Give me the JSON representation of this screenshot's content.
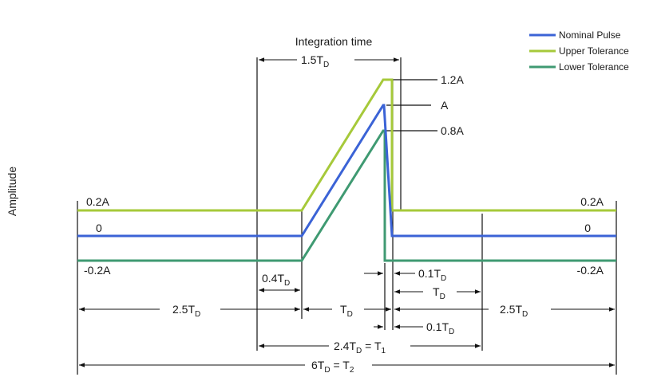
{
  "y_axis_label": "Amplitude",
  "integration_time_label": "Integration time",
  "legend": [
    {
      "label": "Nominal Pulse",
      "color": "#3b63d6"
    },
    {
      "label": "Upper Tolerance",
      "color": "#a6c93a"
    },
    {
      "label": "Lower Tolerance",
      "color": "#3f9a72"
    }
  ],
  "levels": {
    "upper_left": "0.2A",
    "zero_left": "0",
    "lower_left": "-0.2A",
    "upper_right": "0.2A",
    "zero_right": "0",
    "lower_right": "-0.2A",
    "peak_upper": "1.2A",
    "peak_nominal": "A",
    "peak_lower": "0.8A"
  },
  "dimensions": {
    "integration": {
      "main": "1.5T",
      "sub": "D"
    },
    "rise_offset": {
      "main": "0.4T",
      "sub": "D"
    },
    "left_flat": {
      "main": "2.5T",
      "sub": "D"
    },
    "pulse": {
      "main": "T",
      "sub": "D"
    },
    "right_flat": {
      "main": "2.5T",
      "sub": "D"
    },
    "fall_upper": {
      "main": "0.1T",
      "sub": "D"
    },
    "after_fall": {
      "main": "T",
      "sub": "D"
    },
    "fall_lower": {
      "main": "0.1T",
      "sub": "D"
    },
    "t1": {
      "main": "2.4T",
      "sub": "D",
      "eq": " = T",
      "eqsub": "1"
    },
    "t2": {
      "main": "6T",
      "sub": "D",
      "eq": " = T",
      "eqsub": "2"
    }
  }
}
